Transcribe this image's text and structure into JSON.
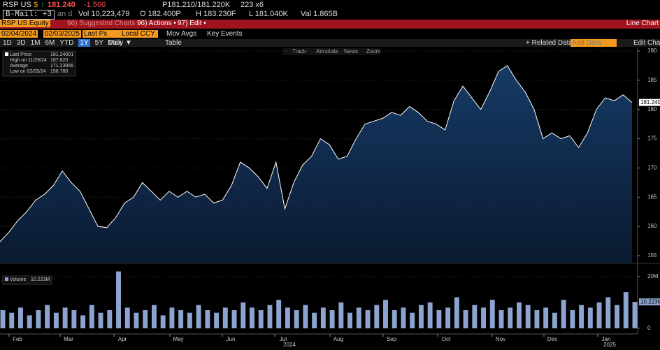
{
  "header": {
    "ticker": "RSP US",
    "currency": "$",
    "arrow": "↑",
    "last": "181.240",
    "change": "-1.500",
    "bid_ask": "P181.210/181.220K",
    "size": "223 x6",
    "mail": "B-Mail: +3",
    "flag": "an d",
    "volume": "Vol 10,223,479",
    "open": "O 182.400P",
    "high": "H 183.230F",
    "low": "L 181.040K",
    "value": "Val 1.865B"
  },
  "menu": {
    "security": "RSP US Equity",
    "suggested": "96) Suggested Charts",
    "actions": "96) Actions •",
    "edit": "97) Edit •",
    "title": "Line Chart"
  },
  "controls": {
    "start": "02/04/2024",
    "end": "02/03/2025",
    "field": "Last Px",
    "currency": "Local CCY",
    "mov_avgs": "Mov Avgs",
    "key_events": "Key Events",
    "ranges": [
      "1D",
      "3D",
      "1M",
      "6M",
      "YTD",
      "1Y",
      "5Y",
      "Max"
    ],
    "frequency": "Daily ▼",
    "table": "Table",
    "related": "+ Related Data •",
    "add_data": "Add Data",
    "edit_chart": "Edit Chart",
    "tools": [
      "Track",
      "Annotate",
      "News",
      "Zoom"
    ]
  },
  "time_axis": {
    "months": [
      "Feb",
      "Mar",
      "Apr",
      "May",
      "Jun",
      "Jul",
      "Aug",
      "Sep",
      "Oct",
      "Nov",
      "Dec",
      "Jan"
    ],
    "years": [
      "2024",
      "2025"
    ]
  },
  "chart_data": [
    {
      "type": "line",
      "legend": [
        {
          "label": "Last Price",
          "value": "181.24001"
        },
        {
          "label": "High on 11/29/24",
          "value": "187.620"
        },
        {
          "label": "Average",
          "value": "171.23856"
        },
        {
          "label": "Low on 02/05/24",
          "value": "156.780"
        }
      ],
      "series": [
        {
          "name": "Last Price",
          "color": "#ffffff",
          "values": [
            157.4,
            159,
            161,
            162.5,
            164.5,
            165.5,
            167,
            169.5,
            167.5,
            166,
            163,
            160,
            159.8,
            161.5,
            164,
            165,
            167.5,
            166,
            164.5,
            166,
            165,
            166,
            165,
            165.5,
            164,
            164.5,
            167,
            171,
            170,
            168.5,
            166.5,
            171,
            163,
            167.5,
            170.5,
            172,
            175,
            174,
            171.5,
            172,
            175,
            177.5,
            178,
            178.5,
            179.5,
            179,
            180.5,
            179.5,
            178,
            177.5,
            176.5,
            181.5,
            184,
            182,
            180,
            183,
            186.5,
            187.5,
            185,
            183,
            180,
            175,
            176,
            175,
            175.5,
            173.5,
            176,
            180,
            182,
            181.5,
            182.5,
            181.2
          ]
        }
      ],
      "last_label": "181.240",
      "ylim": [
        153.8,
        190.6
      ],
      "yticks": [
        155,
        160,
        165,
        170,
        175,
        180,
        185,
        190
      ],
      "grid": true
    },
    {
      "type": "bar",
      "legend": [
        {
          "label": "Volume",
          "value": "10.223M"
        }
      ],
      "series": [
        {
          "name": "Volume",
          "color": "#8da4d0",
          "values": [
            7,
            6,
            8,
            5,
            7,
            9,
            6,
            8,
            7,
            5,
            9,
            6,
            7,
            22,
            8,
            6,
            7,
            9,
            5,
            8,
            7,
            6,
            9,
            7,
            6,
            8,
            7,
            10,
            8,
            7,
            9,
            11,
            8,
            7,
            9,
            6,
            8,
            7,
            10,
            6,
            8,
            7,
            9,
            11,
            7,
            8,
            6,
            9,
            10,
            7,
            8,
            12,
            7,
            9,
            8,
            11,
            7,
            8,
            10,
            9,
            7,
            8,
            6,
            11,
            7,
            9,
            8,
            10,
            12,
            9,
            14,
            10.2
          ]
        }
      ],
      "last_label": "10.223M",
      "ylim": [
        -2.2,
        21.6
      ],
      "yticks": [
        {
          "value": 0,
          "label": "0"
        },
        {
          "value": 20,
          "label": "20M"
        }
      ],
      "grid": true
    }
  ]
}
